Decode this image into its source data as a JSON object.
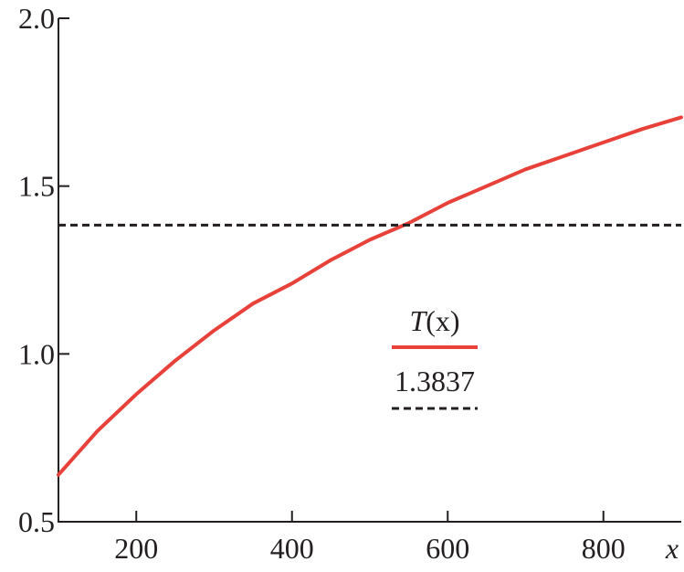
{
  "chart_data": {
    "type": "line",
    "title": "",
    "xlabel": "x",
    "ylabel": "",
    "xlim": [
      100,
      900
    ],
    "ylim": [
      0.5,
      2.0
    ],
    "x_ticks": [
      200,
      400,
      600,
      800
    ],
    "x_tick_labels": [
      "200",
      "400",
      "600",
      "800"
    ],
    "y_ticks": [
      0.5,
      1.0,
      1.5,
      2.0
    ],
    "y_tick_labels": [
      "0.5",
      "1.0",
      "1.5",
      "2.0"
    ],
    "grid": false,
    "legend_position": "center-right",
    "series": [
      {
        "name_prefix": "T",
        "name_suffix": "(x)",
        "name": "T(x)",
        "color": "#e8413a",
        "style": "solid",
        "x": [
          100,
          150,
          200,
          250,
          300,
          350,
          400,
          450,
          500,
          550,
          600,
          650,
          700,
          750,
          800,
          850,
          900
        ],
        "y": [
          0.64,
          0.77,
          0.88,
          0.98,
          1.07,
          1.15,
          1.21,
          1.28,
          1.34,
          1.39,
          1.45,
          1.5,
          1.55,
          1.59,
          1.63,
          1.67,
          1.705
        ]
      },
      {
        "name": "1.3837",
        "color": "#231f20",
        "style": "dashed",
        "x": [
          100,
          900
        ],
        "y": [
          1.3837,
          1.3837
        ]
      }
    ]
  }
}
